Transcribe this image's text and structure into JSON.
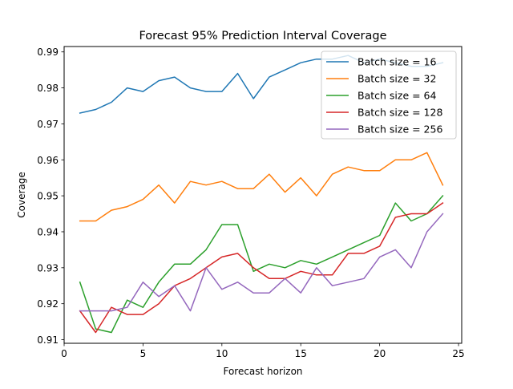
{
  "chart_data": {
    "type": "line",
    "title": "Forecast 95% Prediction Interval Coverage",
    "xlabel": "Forecast horizon",
    "ylabel": "Coverage",
    "xlim": [
      0,
      25.2
    ],
    "ylim": [
      0.909,
      0.9915
    ],
    "xticks": [
      0,
      5,
      10,
      15,
      20,
      25
    ],
    "yticks": [
      0.91,
      0.92,
      0.93,
      0.94,
      0.95,
      0.96,
      0.97,
      0.98,
      0.99
    ],
    "ytick_labels": [
      "0.91",
      "0.92",
      "0.93",
      "0.94",
      "0.95",
      "0.96",
      "0.97",
      "0.98",
      "0.99"
    ],
    "grid": false,
    "legend_position": "top-right",
    "x": [
      1,
      2,
      3,
      4,
      5,
      6,
      7,
      8,
      9,
      10,
      11,
      12,
      13,
      14,
      15,
      16,
      17,
      18,
      19,
      20,
      21,
      22,
      23,
      24
    ],
    "series": [
      {
        "name": "Batch size = 16",
        "color": "#1f77b4",
        "values": [
          0.973,
          0.974,
          0.976,
          0.98,
          0.979,
          0.982,
          0.983,
          0.98,
          0.979,
          0.979,
          0.984,
          0.977,
          0.983,
          0.985,
          0.987,
          0.988,
          0.988,
          0.989,
          0.987,
          0.988,
          0.987,
          0.986,
          0.986,
          0.987
        ]
      },
      {
        "name": "Batch size = 32",
        "color": "#ff7f0e",
        "values": [
          0.943,
          0.943,
          0.946,
          0.947,
          0.949,
          0.953,
          0.948,
          0.954,
          0.953,
          0.954,
          0.952,
          0.952,
          0.956,
          0.951,
          0.955,
          0.95,
          0.956,
          0.958,
          0.957,
          0.957,
          0.96,
          0.96,
          0.962,
          0.953
        ]
      },
      {
        "name": "Batch size = 64",
        "color": "#2ca02c",
        "values": [
          0.926,
          0.913,
          0.912,
          0.921,
          0.919,
          0.926,
          0.931,
          0.931,
          0.935,
          0.942,
          0.942,
          0.929,
          0.931,
          0.93,
          0.932,
          0.931,
          0.933,
          0.935,
          0.937,
          0.939,
          0.948,
          0.943,
          0.945,
          0.95
        ]
      },
      {
        "name": "Batch size = 128",
        "color": "#d62728",
        "values": [
          0.918,
          0.912,
          0.919,
          0.917,
          0.917,
          0.92,
          0.925,
          0.927,
          0.93,
          0.933,
          0.934,
          0.93,
          0.927,
          0.927,
          0.929,
          0.928,
          0.928,
          0.934,
          0.934,
          0.936,
          0.944,
          0.945,
          0.945,
          0.948
        ]
      },
      {
        "name": "Batch size = 256",
        "color": "#9467bd",
        "values": [
          0.918,
          0.918,
          0.918,
          0.919,
          0.926,
          0.922,
          0.925,
          0.918,
          0.93,
          0.924,
          0.926,
          0.923,
          0.923,
          0.927,
          0.923,
          0.93,
          0.925,
          0.926,
          0.927,
          0.933,
          0.935,
          0.93,
          0.94,
          0.945
        ]
      }
    ]
  }
}
